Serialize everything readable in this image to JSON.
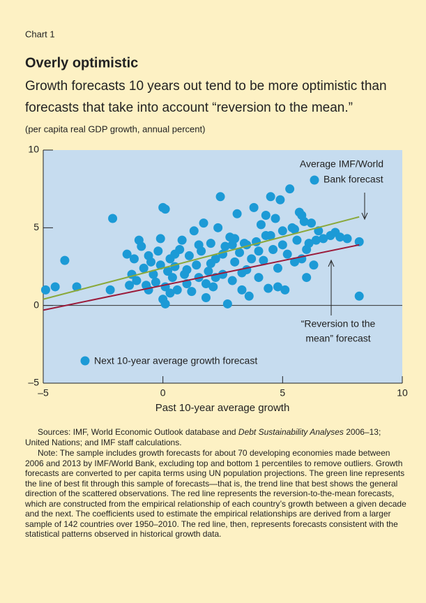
{
  "chart_data": {
    "type": "scatter",
    "label": "Chart 1",
    "title": "Overly optimistic",
    "subtitle": [
      "Growth forecasts 10 years out tend to be more optimistic than",
      "forecasts that take into account “reversion to the mean.”"
    ],
    "unit_note": "(per capita real GDP growth, annual percent)",
    "xlabel": "Past 10-year average growth",
    "xlim": [
      -5,
      10
    ],
    "ylim": [
      -5,
      10
    ],
    "xticks": [
      {
        "value": -5,
        "label": "–5"
      },
      0,
      5,
      10
    ],
    "yticks": [
      {
        "value": -5,
        "label": "–5"
      },
      0,
      5,
      10
    ],
    "series": [
      {
        "name": "Next 10-year average growth forecast",
        "color": "#1c9ad6",
        "x": [
          -4.9,
          -4.5,
          -4.1,
          -3.6,
          -2.1,
          -2.2,
          -1.5,
          -1.4,
          -1.3,
          -1.2,
          -1.1,
          -1.0,
          -0.9,
          -0.8,
          -0.7,
          -0.6,
          -0.6,
          -0.5,
          -0.4,
          -0.3,
          -0.2,
          -0.1,
          -0.1,
          0.0,
          0.1,
          0.0,
          0.1,
          0.1,
          0.2,
          0.3,
          0.4,
          0.5,
          0.6,
          0.7,
          0.8,
          0.9,
          1.0,
          1.1,
          1.2,
          1.3,
          1.4,
          1.5,
          1.6,
          1.7,
          1.8,
          1.9,
          2.0,
          2.1,
          2.2,
          2.3,
          2.4,
          2.5,
          2.6,
          2.7,
          2.8,
          2.9,
          3.0,
          3.1,
          3.2,
          3.3,
          3.4,
          3.5,
          3.6,
          3.7,
          3.8,
          3.9,
          4.0,
          4.1,
          4.2,
          4.3,
          4.4,
          4.5,
          4.6,
          4.7,
          4.8,
          4.9,
          5.0,
          5.1,
          5.2,
          5.3,
          5.4,
          5.5,
          5.6,
          5.7,
          5.8,
          5.9,
          6.0,
          6.1,
          6.2,
          6.3,
          6.5,
          6.7,
          7.0,
          7.2,
          7.4,
          7.7,
          8.2,
          8.2,
          0.5,
          1.0,
          1.5,
          2.0,
          2.5,
          3.0,
          3.5,
          4.0,
          4.5,
          5.0,
          5.5,
          6.0,
          2.2,
          1.8,
          3.3,
          4.8,
          0.3,
          6.4,
          5.8,
          4.3,
          2.9
        ],
        "values": [
          1.0,
          1.2,
          2.9,
          1.2,
          5.6,
          1.0,
          3.3,
          1.3,
          2.0,
          3.0,
          1.6,
          4.2,
          3.8,
          2.4,
          1.3,
          3.2,
          1.0,
          2.8,
          2.0,
          1.5,
          3.5,
          2.6,
          4.3,
          6.3,
          6.2,
          0.4,
          0.1,
          1.2,
          2.2,
          3.0,
          1.8,
          2.5,
          1.0,
          3.6,
          4.2,
          2.0,
          1.4,
          3.2,
          0.9,
          4.8,
          2.6,
          1.8,
          3.5,
          5.3,
          0.5,
          2.2,
          4.0,
          1.2,
          3.0,
          5.0,
          7.0,
          2.0,
          3.8,
          0.1,
          4.4,
          1.6,
          2.8,
          5.9,
          3.4,
          1.0,
          4.0,
          2.3,
          0.6,
          3.0,
          6.3,
          4.1,
          1.8,
          5.2,
          2.9,
          4.5,
          1.1,
          7.0,
          3.6,
          5.6,
          2.4,
          6.8,
          4.8,
          1.0,
          3.3,
          7.5,
          5.0,
          2.8,
          4.2,
          6.0,
          3.0,
          5.4,
          1.8,
          4.0,
          5.3,
          2.6,
          4.8,
          4.3,
          4.5,
          4.7,
          4.4,
          4.3,
          4.1,
          0.6,
          3.3,
          2.3,
          3.9,
          2.7,
          3.3,
          4.3,
          3.9,
          3.5,
          4.5,
          3.9,
          4.9,
          3.6,
          1.8,
          1.4,
          2.1,
          1.2,
          0.8,
          4.2,
          5.8,
          5.8,
          3.9
        ]
      }
    ],
    "lines": [
      {
        "color": "#8aa83a",
        "x": [
          -5,
          8.2
        ],
        "values": [
          0.4,
          5.7
        ]
      },
      {
        "color": "#9b1b3a",
        "x": [
          -5,
          8.2
        ],
        "values": [
          -0.3,
          3.9
        ]
      }
    ],
    "annotations": [
      [
        "Average IMF/World",
        "Bank forecast"
      ],
      [
        "“Reversion to the",
        "mean” forecast"
      ]
    ],
    "sources": [
      "Sources: IMF, World Economic Outlook database and ",
      "Debt Sustainability Analyses",
      " 2006–13; United Nations; and IMF staff calculations."
    ],
    "note": "Note: The sample includes growth forecasts for about 70 developing economies made between 2006 and 2013 by IMF/World Bank, excluding top and bottom 1 percentiles to remove outliers. Growth forecasts are converted to per capita terms using UN population projections. The green line represents the line of best fit through this sample of forecasts—that is, the trend line that best shows the general direction of the scattered observations. The red line represents the reversion-to-the-mean forecasts, which are constructed from the empirical relationship of each country’s growth between a given decade and the next. The coefficients used to estimate the empirical relationships are derived from a larger sample of 142 countries over 1950–2010. The red line, then, represents forecasts consistent with the statistical patterns observed in historical growth data."
  }
}
